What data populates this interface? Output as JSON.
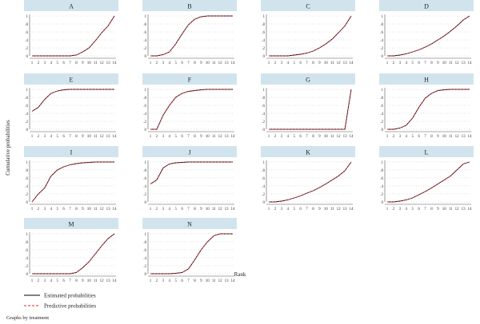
{
  "figure": {
    "ylabel": "Cumulative probabilities",
    "xlabel": "Rank",
    "note": "Graphs by treatment",
    "legend": [
      {
        "label": "Estimated probabilities",
        "color": "#000000",
        "style": "solid"
      },
      {
        "label": "Predictive probabilities",
        "color": "#e8202a",
        "style": "dashed"
      }
    ],
    "colors": {
      "header": "#d1e4ee",
      "estimated": "#000000",
      "predictive": "#e8202a",
      "grid": "#9a9a9a",
      "axis": "#555555"
    }
  },
  "chart_data": {
    "type": "line",
    "x": [
      1,
      2,
      3,
      4,
      5,
      6,
      7,
      8,
      9,
      10,
      11,
      12,
      13,
      14
    ],
    "x_tick_labels": [
      "1",
      "2",
      "3",
      "4",
      "5",
      "6",
      "7",
      "8",
      "9",
      "10",
      "11",
      "12",
      "13",
      "14"
    ],
    "y_tick_labels": [
      "0",
      ".2",
      ".4",
      ".6",
      ".8",
      "1"
    ],
    "ylim": [
      0,
      1
    ],
    "grid": true,
    "legend_position": "bottom-left",
    "panels": [
      {
        "title": "A",
        "estimated": [
          0,
          0,
          0,
          0,
          0,
          0,
          0,
          0.02,
          0.1,
          0.2,
          0.38,
          0.58,
          0.75,
          1
        ],
        "predictive": [
          0,
          0,
          0,
          0,
          0,
          0,
          0,
          0.02,
          0.1,
          0.2,
          0.38,
          0.58,
          0.75,
          1
        ]
      },
      {
        "title": "B",
        "estimated": [
          0,
          0,
          0.03,
          0.1,
          0.3,
          0.55,
          0.78,
          0.92,
          0.98,
          1,
          1,
          1,
          1,
          1
        ],
        "predictive": [
          0,
          0,
          0.03,
          0.1,
          0.3,
          0.55,
          0.78,
          0.92,
          0.98,
          1,
          1,
          1,
          1,
          1
        ]
      },
      {
        "title": "C",
        "estimated": [
          0,
          0,
          0,
          0,
          0.02,
          0.04,
          0.07,
          0.12,
          0.2,
          0.3,
          0.42,
          0.58,
          0.75,
          1
        ],
        "predictive": [
          0,
          0,
          0,
          0,
          0.02,
          0.04,
          0.07,
          0.12,
          0.2,
          0.3,
          0.42,
          0.58,
          0.75,
          1
        ]
      },
      {
        "title": "D",
        "estimated": [
          0,
          0,
          0.02,
          0.05,
          0.1,
          0.15,
          0.22,
          0.3,
          0.4,
          0.5,
          0.62,
          0.75,
          0.9,
          1
        ],
        "predictive": [
          0,
          0,
          0.02,
          0.05,
          0.1,
          0.15,
          0.22,
          0.3,
          0.4,
          0.5,
          0.62,
          0.75,
          0.9,
          1
        ]
      },
      {
        "title": "E",
        "estimated": [
          0.45,
          0.55,
          0.75,
          0.9,
          0.96,
          0.99,
          1,
          1,
          1,
          1,
          1,
          1,
          1,
          1
        ],
        "predictive": [
          0.45,
          0.55,
          0.75,
          0.9,
          0.96,
          0.99,
          1,
          1,
          1,
          1,
          1,
          1,
          1,
          1
        ]
      },
      {
        "title": "F",
        "estimated": [
          0,
          0,
          0.35,
          0.6,
          0.8,
          0.9,
          0.95,
          0.97,
          0.99,
          1,
          1,
          1,
          1,
          1
        ],
        "predictive": [
          0,
          0,
          0.35,
          0.6,
          0.8,
          0.9,
          0.95,
          0.97,
          0.99,
          1,
          1,
          1,
          1,
          1
        ]
      },
      {
        "title": "G",
        "estimated": [
          0,
          0,
          0,
          0,
          0,
          0,
          0,
          0,
          0,
          0,
          0,
          0,
          0,
          1
        ],
        "predictive": [
          0,
          0,
          0,
          0,
          0,
          0,
          0,
          0,
          0,
          0,
          0,
          0,
          0,
          1
        ]
      },
      {
        "title": "H",
        "estimated": [
          0,
          0,
          0.03,
          0.1,
          0.28,
          0.55,
          0.78,
          0.9,
          0.97,
          0.99,
          1,
          1,
          1,
          1
        ],
        "predictive": [
          0,
          0,
          0.03,
          0.1,
          0.28,
          0.55,
          0.78,
          0.9,
          0.97,
          0.99,
          1,
          1,
          1,
          1
        ]
      },
      {
        "title": "I",
        "estimated": [
          0,
          0.2,
          0.35,
          0.65,
          0.8,
          0.88,
          0.93,
          0.96,
          0.98,
          0.99,
          1,
          1,
          1,
          1
        ],
        "predictive": [
          0,
          0.2,
          0.35,
          0.65,
          0.8,
          0.88,
          0.93,
          0.96,
          0.98,
          0.99,
          1,
          1,
          1,
          1
        ]
      },
      {
        "title": "J",
        "estimated": [
          0.45,
          0.55,
          0.85,
          0.95,
          0.98,
          0.99,
          1,
          1,
          1,
          1,
          1,
          1,
          1,
          1
        ],
        "predictive": [
          0.45,
          0.55,
          0.85,
          0.95,
          0.98,
          0.99,
          1,
          1,
          1,
          1,
          1,
          1,
          1,
          1
        ]
      },
      {
        "title": "K",
        "estimated": [
          0,
          0,
          0.02,
          0.05,
          0.1,
          0.15,
          0.22,
          0.28,
          0.36,
          0.45,
          0.55,
          0.65,
          0.78,
          1
        ],
        "predictive": [
          0,
          0,
          0.02,
          0.05,
          0.1,
          0.15,
          0.22,
          0.28,
          0.36,
          0.45,
          0.55,
          0.65,
          0.78,
          1
        ]
      },
      {
        "title": "L",
        "estimated": [
          0,
          0,
          0.02,
          0.05,
          0.1,
          0.18,
          0.26,
          0.35,
          0.45,
          0.55,
          0.65,
          0.8,
          0.95,
          1
        ],
        "predictive": [
          0,
          0,
          0.02,
          0.05,
          0.1,
          0.18,
          0.26,
          0.35,
          0.45,
          0.55,
          0.65,
          0.8,
          0.95,
          1
        ]
      },
      {
        "title": "M",
        "estimated": [
          0,
          0,
          0,
          0,
          0,
          0,
          0,
          0.03,
          0.15,
          0.3,
          0.5,
          0.7,
          0.88,
          1
        ],
        "predictive": [
          0,
          0,
          0,
          0,
          0,
          0,
          0,
          0.03,
          0.15,
          0.3,
          0.5,
          0.7,
          0.88,
          1
        ]
      },
      {
        "title": "N",
        "estimated": [
          0,
          0,
          0,
          0,
          0.01,
          0.03,
          0.12,
          0.35,
          0.6,
          0.8,
          0.95,
          1,
          1,
          1
        ],
        "predictive": [
          0,
          0,
          0,
          0,
          0.01,
          0.03,
          0.12,
          0.35,
          0.6,
          0.8,
          0.95,
          1,
          1,
          1
        ]
      }
    ]
  }
}
